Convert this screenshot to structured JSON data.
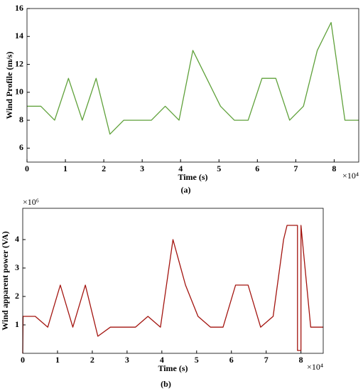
{
  "chart_data": [
    {
      "type": "line",
      "caption": "(a)",
      "xlabel": "Time (s)",
      "ylabel": "Wind Profile (m/s)",
      "x_multiplier": "×10⁴",
      "x": [
        0,
        0.36,
        0.72,
        1.08,
        1.44,
        1.8,
        2.16,
        2.52,
        2.88,
        3.24,
        3.6,
        3.96,
        4.32,
        4.68,
        5.04,
        5.4,
        5.76,
        6.12,
        6.48,
        6.84,
        7.2,
        7.56,
        7.92,
        8.28,
        8.64
      ],
      "series": [
        {
          "name": null,
          "color": "#5fa13a",
          "values": [
            9,
            9,
            8,
            11,
            8,
            11,
            7,
            8,
            8,
            8,
            9,
            8,
            13,
            11,
            9,
            8,
            8,
            11,
            11,
            8,
            9,
            13,
            15,
            8,
            8
          ]
        }
      ],
      "xlim": [
        0,
        8.64
      ],
      "xticks": [
        0,
        1,
        2,
        3,
        4,
        5,
        6,
        7,
        8
      ],
      "ylim": [
        5,
        16
      ],
      "yticks": [
        6,
        8,
        10,
        12,
        14,
        16
      ]
    },
    {
      "type": "line",
      "caption": "(b)",
      "xlabel": "Time (s)",
      "ylabel": "Wind apparent power (VA)",
      "x_multiplier": "×10⁴",
      "y_multiplier": "×10⁶",
      "x": [
        0,
        0.01,
        0.36,
        0.72,
        1.08,
        1.44,
        1.8,
        2.16,
        2.52,
        3.24,
        3.6,
        3.96,
        4.32,
        4.68,
        5.04,
        5.4,
        5.76,
        6.12,
        6.48,
        6.84,
        7.2,
        7.5,
        7.6,
        7.9,
        7.9,
        8.0,
        8.0,
        8.28,
        8.64
      ],
      "series": [
        {
          "name": null,
          "color": "#a3140f",
          "values": [
            0,
            1.3,
            1.3,
            0.92,
            2.4,
            0.92,
            2.4,
            0.6,
            0.92,
            0.92,
            1.3,
            0.92,
            4.0,
            2.4,
            1.3,
            0.92,
            0.92,
            2.4,
            2.4,
            0.92,
            1.3,
            4.0,
            4.5,
            4.5,
            0.1,
            0.1,
            4.5,
            0.92,
            0.92
          ]
        }
      ],
      "xlim": [
        0,
        8.64
      ],
      "xticks": [
        0,
        1,
        2,
        3,
        4,
        5,
        6,
        7,
        8
      ],
      "ylim": [
        0,
        5.1
      ],
      "yticks": [
        1,
        2,
        3,
        4
      ]
    }
  ]
}
